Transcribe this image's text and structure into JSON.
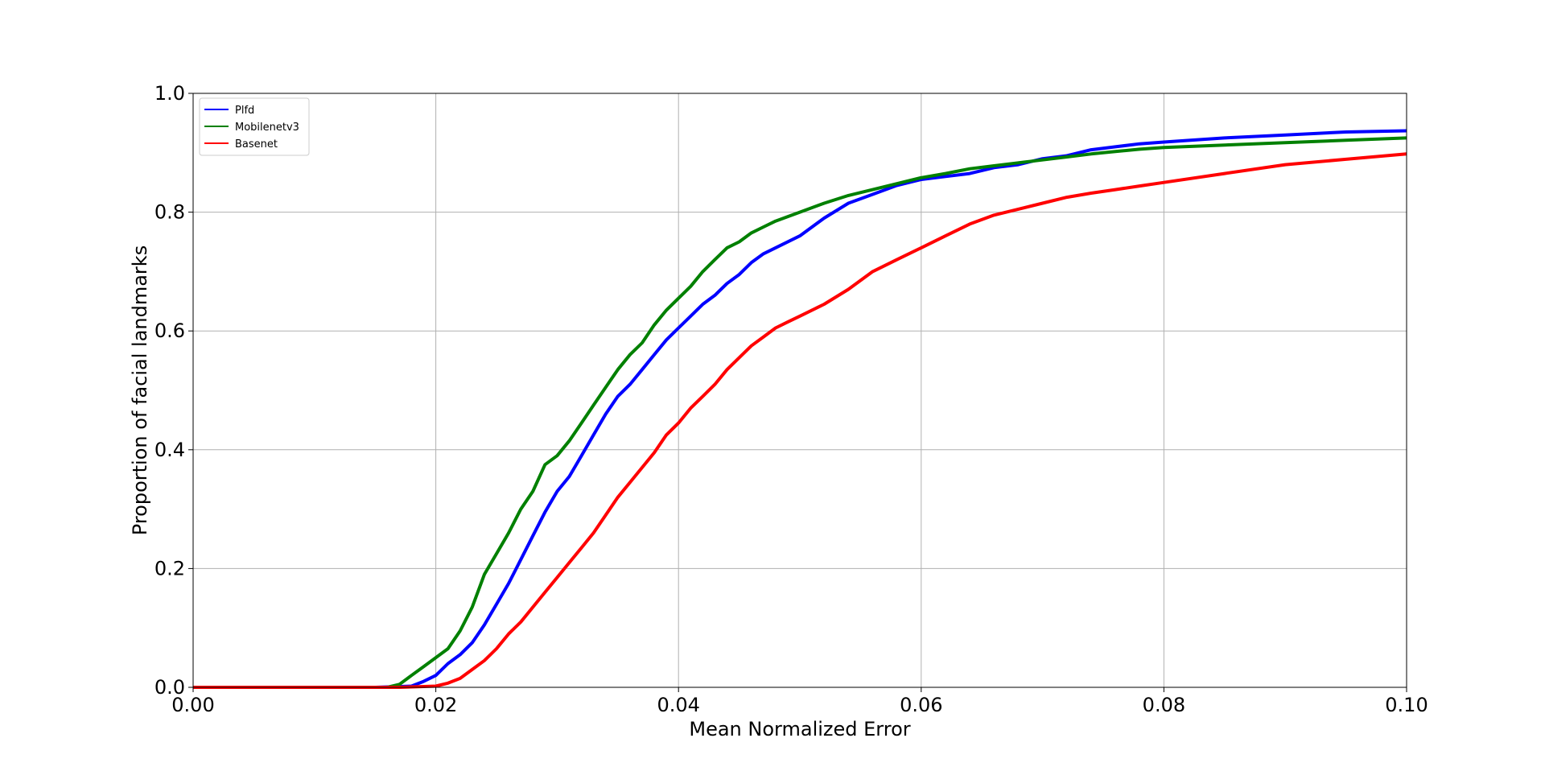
{
  "chart_data": {
    "type": "line",
    "title": "",
    "xlabel": "Mean Normalized Error",
    "ylabel": "Proportion of facial landmarks",
    "xlim": [
      0.0,
      0.1
    ],
    "ylim": [
      0.0,
      1.0
    ],
    "xticks": [
      "0.00",
      "0.02",
      "0.04",
      "0.06",
      "0.08",
      "0.10"
    ],
    "yticks": [
      "0.0",
      "0.2",
      "0.4",
      "0.6",
      "0.8",
      "1.0"
    ],
    "grid": true,
    "legend": "top-left",
    "series": [
      {
        "name": "Plfd",
        "color": "#0000ff",
        "x": [
          0.0,
          0.015,
          0.018,
          0.019,
          0.02,
          0.021,
          0.022,
          0.023,
          0.024,
          0.025,
          0.026,
          0.027,
          0.028,
          0.029,
          0.03,
          0.031,
          0.032,
          0.033,
          0.034,
          0.035,
          0.036,
          0.037,
          0.038,
          0.039,
          0.04,
          0.041,
          0.042,
          0.043,
          0.044,
          0.045,
          0.046,
          0.047,
          0.048,
          0.05,
          0.052,
          0.054,
          0.056,
          0.058,
          0.06,
          0.062,
          0.064,
          0.066,
          0.068,
          0.07,
          0.072,
          0.074,
          0.076,
          0.078,
          0.08,
          0.085,
          0.09,
          0.095,
          0.1
        ],
        "y": [
          0.0,
          0.0,
          0.002,
          0.01,
          0.02,
          0.04,
          0.055,
          0.075,
          0.105,
          0.14,
          0.175,
          0.215,
          0.255,
          0.295,
          0.33,
          0.355,
          0.39,
          0.425,
          0.46,
          0.49,
          0.51,
          0.535,
          0.56,
          0.585,
          0.605,
          0.625,
          0.645,
          0.66,
          0.68,
          0.695,
          0.715,
          0.73,
          0.74,
          0.76,
          0.79,
          0.815,
          0.83,
          0.845,
          0.855,
          0.86,
          0.865,
          0.875,
          0.88,
          0.89,
          0.895,
          0.905,
          0.91,
          0.915,
          0.918,
          0.925,
          0.93,
          0.935,
          0.937
        ]
      },
      {
        "name": "Mobilenetv3",
        "color": "#008000",
        "x": [
          0.0,
          0.016,
          0.017,
          0.018,
          0.019,
          0.02,
          0.021,
          0.022,
          0.023,
          0.024,
          0.025,
          0.026,
          0.027,
          0.028,
          0.029,
          0.03,
          0.031,
          0.032,
          0.033,
          0.034,
          0.035,
          0.036,
          0.037,
          0.038,
          0.039,
          0.04,
          0.041,
          0.042,
          0.043,
          0.044,
          0.045,
          0.046,
          0.047,
          0.048,
          0.05,
          0.052,
          0.054,
          0.056,
          0.058,
          0.06,
          0.062,
          0.064,
          0.066,
          0.068,
          0.07,
          0.072,
          0.074,
          0.076,
          0.078,
          0.08,
          0.085,
          0.09,
          0.095,
          0.1
        ],
        "y": [
          0.0,
          0.0,
          0.005,
          0.02,
          0.035,
          0.05,
          0.065,
          0.095,
          0.135,
          0.19,
          0.225,
          0.26,
          0.3,
          0.33,
          0.375,
          0.39,
          0.415,
          0.445,
          0.475,
          0.505,
          0.535,
          0.56,
          0.58,
          0.61,
          0.635,
          0.655,
          0.675,
          0.7,
          0.72,
          0.74,
          0.75,
          0.765,
          0.775,
          0.785,
          0.8,
          0.815,
          0.828,
          0.838,
          0.848,
          0.858,
          0.865,
          0.873,
          0.878,
          0.883,
          0.888,
          0.893,
          0.898,
          0.902,
          0.906,
          0.909,
          0.913,
          0.917,
          0.921,
          0.925
        ]
      },
      {
        "name": "Basenet",
        "color": "#ff0000",
        "x": [
          0.0,
          0.017,
          0.02,
          0.021,
          0.022,
          0.023,
          0.024,
          0.025,
          0.026,
          0.027,
          0.028,
          0.029,
          0.03,
          0.031,
          0.032,
          0.033,
          0.034,
          0.035,
          0.036,
          0.037,
          0.038,
          0.039,
          0.04,
          0.041,
          0.042,
          0.043,
          0.044,
          0.045,
          0.046,
          0.047,
          0.048,
          0.049,
          0.05,
          0.052,
          0.054,
          0.056,
          0.058,
          0.06,
          0.062,
          0.064,
          0.066,
          0.068,
          0.07,
          0.072,
          0.074,
          0.076,
          0.078,
          0.08,
          0.085,
          0.09,
          0.095,
          0.1
        ],
        "y": [
          0.0,
          0.0,
          0.002,
          0.007,
          0.015,
          0.03,
          0.045,
          0.065,
          0.09,
          0.11,
          0.135,
          0.16,
          0.185,
          0.21,
          0.235,
          0.26,
          0.29,
          0.32,
          0.345,
          0.37,
          0.395,
          0.425,
          0.445,
          0.47,
          0.49,
          0.51,
          0.535,
          0.555,
          0.575,
          0.59,
          0.605,
          0.615,
          0.625,
          0.645,
          0.67,
          0.7,
          0.72,
          0.74,
          0.76,
          0.78,
          0.795,
          0.805,
          0.815,
          0.825,
          0.832,
          0.838,
          0.844,
          0.85,
          0.865,
          0.88,
          0.889,
          0.898
        ]
      }
    ]
  }
}
